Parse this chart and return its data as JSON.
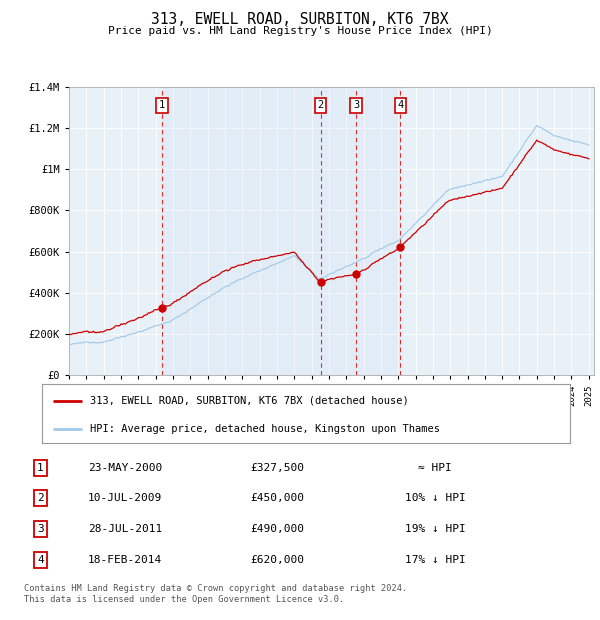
{
  "title": "313, EWELL ROAD, SURBITON, KT6 7BX",
  "subtitle": "Price paid vs. HM Land Registry's House Price Index (HPI)",
  "x_start_year": 1995,
  "x_end_year": 2025,
  "y_min": 0,
  "y_max": 1400000,
  "y_ticks": [
    0,
    200000,
    400000,
    600000,
    800000,
    1000000,
    1200000,
    1400000
  ],
  "y_tick_labels": [
    "£0",
    "£200K",
    "£400K",
    "£600K",
    "£800K",
    "£1M",
    "£1.2M",
    "£1.4M"
  ],
  "hpi_color": "#a0c8e8",
  "price_color": "#cc0000",
  "background_color": "#e8f0f8",
  "grid_color": "#ffffff",
  "sales": [
    {
      "num": 1,
      "date": "23-MAY-2000",
      "year": 2000.38,
      "price": 327500,
      "label": "≈ HPI"
    },
    {
      "num": 2,
      "date": "10-JUL-2009",
      "year": 2009.52,
      "price": 450000,
      "label": "10% ↓ HPI"
    },
    {
      "num": 3,
      "date": "28-JUL-2011",
      "year": 2011.57,
      "price": 490000,
      "label": "19% ↓ HPI"
    },
    {
      "num": 4,
      "date": "18-FEB-2014",
      "year": 2014.12,
      "price": 620000,
      "label": "17% ↓ HPI"
    }
  ],
  "legend_line1": "313, EWELL ROAD, SURBITON, KT6 7BX (detached house)",
  "legend_line2": "HPI: Average price, detached house, Kingston upon Thames",
  "footer1": "Contains HM Land Registry data © Crown copyright and database right 2024.",
  "footer2": "This data is licensed under the Open Government Licence v3.0."
}
